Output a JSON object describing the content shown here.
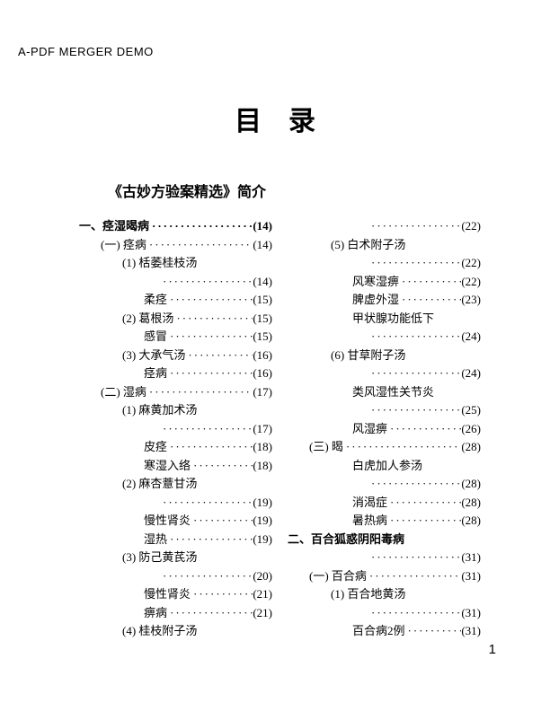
{
  "watermark": "A-PDF MERGER DEMO",
  "title": "目录",
  "intro": "《古妙方验案精选》简介",
  "page_number": "1",
  "left": [
    {
      "indent": 0,
      "bold": true,
      "label": "一、痉湿暍病",
      "page": "(14)"
    },
    {
      "indent": 1,
      "bold": false,
      "label": "(一) 痉病",
      "page": "(14)"
    },
    {
      "indent": 2,
      "bold": false,
      "label": "(1) 栝萎桂枝汤",
      "page": ""
    },
    {
      "indent": 4,
      "bold": false,
      "label": "",
      "page": "(14)"
    },
    {
      "indent": 3,
      "bold": false,
      "label": "柔痉",
      "page": "(15)"
    },
    {
      "indent": 2,
      "bold": false,
      "label": "(2) 葛根汤",
      "page": "(15)"
    },
    {
      "indent": 3,
      "bold": false,
      "label": "感冒",
      "page": "(15)"
    },
    {
      "indent": 2,
      "bold": false,
      "label": "(3) 大承气汤",
      "page": "(16)"
    },
    {
      "indent": 3,
      "bold": false,
      "label": "痉病",
      "page": "(16)"
    },
    {
      "indent": 1,
      "bold": false,
      "label": "(二) 湿病",
      "page": "(17)"
    },
    {
      "indent": 2,
      "bold": false,
      "label": "(1) 麻黄加术汤",
      "page": ""
    },
    {
      "indent": 4,
      "bold": false,
      "label": "",
      "page": "(17)"
    },
    {
      "indent": 3,
      "bold": false,
      "label": "皮痉",
      "page": "(18)"
    },
    {
      "indent": 3,
      "bold": false,
      "label": "寒湿入络",
      "page": "(18)"
    },
    {
      "indent": 2,
      "bold": false,
      "label": "(2) 麻杏薏甘汤",
      "page": ""
    },
    {
      "indent": 4,
      "bold": false,
      "label": "",
      "page": "(19)"
    },
    {
      "indent": 3,
      "bold": false,
      "label": "慢性肾炎",
      "page": "(19)"
    },
    {
      "indent": 3,
      "bold": false,
      "label": "湿热",
      "page": "(19)"
    },
    {
      "indent": 2,
      "bold": false,
      "label": "(3) 防己黄芪汤",
      "page": ""
    },
    {
      "indent": 4,
      "bold": false,
      "label": "",
      "page": "(20)"
    },
    {
      "indent": 3,
      "bold": false,
      "label": "慢性肾炎",
      "page": "(21)"
    },
    {
      "indent": 3,
      "bold": false,
      "label": "痹病",
      "page": "(21)"
    },
    {
      "indent": 2,
      "bold": false,
      "label": "(4) 桂枝附子汤",
      "page": ""
    }
  ],
  "right": [
    {
      "indent": 4,
      "bold": false,
      "label": "",
      "page": "(22)"
    },
    {
      "indent": 2,
      "bold": false,
      "label": "(5) 白术附子汤",
      "page": ""
    },
    {
      "indent": 4,
      "bold": false,
      "label": "",
      "page": "(22)"
    },
    {
      "indent": 3,
      "bold": false,
      "label": "风寒湿痹",
      "page": "(22)"
    },
    {
      "indent": 3,
      "bold": false,
      "label": "脾虚外湿",
      "page": "(23)"
    },
    {
      "indent": 3,
      "bold": false,
      "label": "甲状腺功能低下",
      "page": ""
    },
    {
      "indent": 4,
      "bold": false,
      "label": "",
      "page": "(24)"
    },
    {
      "indent": 2,
      "bold": false,
      "label": "(6) 甘草附子汤",
      "page": ""
    },
    {
      "indent": 4,
      "bold": false,
      "label": "",
      "page": "(24)"
    },
    {
      "indent": 3,
      "bold": false,
      "label": "类风湿性关节炎",
      "page": ""
    },
    {
      "indent": 4,
      "bold": false,
      "label": "",
      "page": "(25)"
    },
    {
      "indent": 3,
      "bold": false,
      "label": "风湿痹",
      "page": "(26)"
    },
    {
      "indent": 1,
      "bold": false,
      "label": "(三) 暍",
      "page": "(28)"
    },
    {
      "indent": 3,
      "bold": false,
      "label": "白虎加人参汤",
      "page": ""
    },
    {
      "indent": 4,
      "bold": false,
      "label": "",
      "page": "(28)"
    },
    {
      "indent": 3,
      "bold": false,
      "label": "消渴症",
      "page": "(28)"
    },
    {
      "indent": 3,
      "bold": false,
      "label": "暑热病",
      "page": "(28)"
    },
    {
      "indent": 0,
      "bold": true,
      "label": "二、百合狐惑阴阳毒病",
      "page": ""
    },
    {
      "indent": 4,
      "bold": false,
      "label": "",
      "page": "(31)"
    },
    {
      "indent": 1,
      "bold": false,
      "label": "(一) 百合病",
      "page": "(31)"
    },
    {
      "indent": 2,
      "bold": false,
      "label": "(1) 百合地黄汤",
      "page": ""
    },
    {
      "indent": 4,
      "bold": false,
      "label": "",
      "page": "(31)"
    },
    {
      "indent": 3,
      "bold": false,
      "label": "百合病2例",
      "page": "(31)"
    }
  ]
}
